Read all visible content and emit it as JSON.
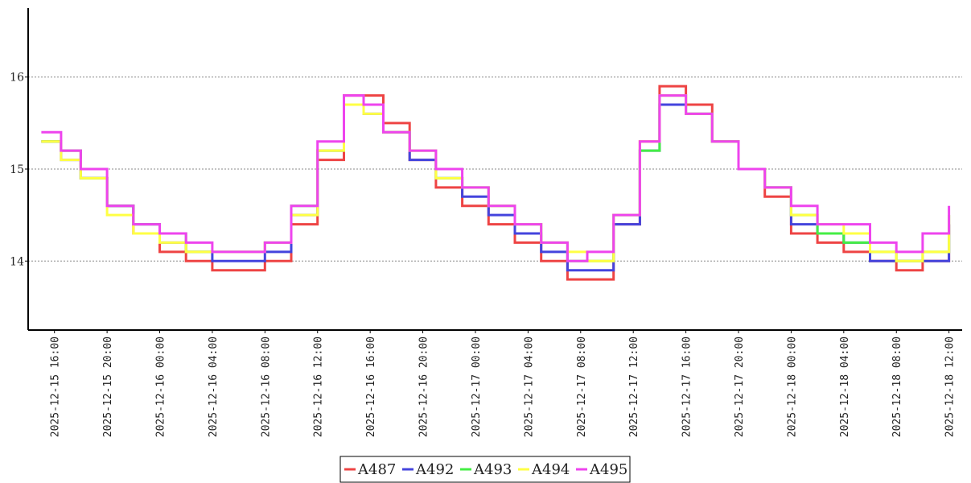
{
  "chart_data": {
    "type": "line",
    "step": true,
    "title": "",
    "xlabel": "",
    "ylabel": "",
    "ylim": [
      13.25,
      16.75
    ],
    "yticks": [
      14,
      15,
      16
    ],
    "xrange": [
      "2025-12-15 14:00",
      "2025-12-18 13:00"
    ],
    "xticks": [
      "2025-12-15 16:00",
      "2025-12-15 20:00",
      "2025-12-16 00:00",
      "2025-12-16 04:00",
      "2025-12-16 08:00",
      "2025-12-16 12:00",
      "2025-12-16 16:00",
      "2025-12-16 20:00",
      "2025-12-17 00:00",
      "2025-12-17 04:00",
      "2025-12-17 08:00",
      "2025-12-17 12:00",
      "2025-12-17 16:00",
      "2025-12-17 20:00",
      "2025-12-18 00:00",
      "2025-12-18 04:00",
      "2025-12-18 08:00",
      "2025-12-18 12:00"
    ],
    "grid": "horizontal-dotted",
    "legend": "bottom",
    "series": [
      {
        "name": "A487",
        "color": "#ee4444",
        "x": [
          "2025-12-15 15:00",
          "2025-12-15 16:30",
          "2025-12-15 18:00",
          "2025-12-15 20:00",
          "2025-12-15 22:00",
          "2025-12-16 00:00",
          "2025-12-16 02:00",
          "2025-12-16 04:00",
          "2025-12-16 06:00",
          "2025-12-16 08:00",
          "2025-12-16 10:00",
          "2025-12-16 12:00",
          "2025-12-16 14:00",
          "2025-12-16 15:30",
          "2025-12-16 17:00",
          "2025-12-16 19:00",
          "2025-12-16 21:00",
          "2025-12-16 23:00",
          "2025-12-17 01:00",
          "2025-12-17 03:00",
          "2025-12-17 05:00",
          "2025-12-17 07:00",
          "2025-12-17 08:30",
          "2025-12-17 10:30",
          "2025-12-17 12:30",
          "2025-12-17 14:00",
          "2025-12-17 16:00",
          "2025-12-17 18:00",
          "2025-12-17 20:00",
          "2025-12-17 22:00",
          "2025-12-18 00:00",
          "2025-12-18 02:00",
          "2025-12-18 04:00",
          "2025-12-18 06:00",
          "2025-12-18 08:00",
          "2025-12-18 10:00",
          "2025-12-18 12:00"
        ],
        "y": [
          15.3,
          15.2,
          14.9,
          14.6,
          14.3,
          14.1,
          14.0,
          13.9,
          13.9,
          14.0,
          14.4,
          15.1,
          15.8,
          15.8,
          15.5,
          15.1,
          14.8,
          14.6,
          14.4,
          14.2,
          14.0,
          13.8,
          13.8,
          14.4,
          15.3,
          15.9,
          15.7,
          15.3,
          15.0,
          14.7,
          14.3,
          14.2,
          14.1,
          14.0,
          13.9,
          14.0,
          14.4
        ]
      },
      {
        "name": "A492",
        "color": "#4444dd",
        "x": [
          "2025-12-15 15:00",
          "2025-12-15 16:30",
          "2025-12-15 18:00",
          "2025-12-15 20:00",
          "2025-12-15 22:00",
          "2025-12-16 00:00",
          "2025-12-16 02:00",
          "2025-12-16 04:00",
          "2025-12-16 06:00",
          "2025-12-16 08:00",
          "2025-12-16 10:00",
          "2025-12-16 12:00",
          "2025-12-16 14:00",
          "2025-12-16 15:30",
          "2025-12-16 17:00",
          "2025-12-16 19:00",
          "2025-12-16 21:00",
          "2025-12-16 23:00",
          "2025-12-17 01:00",
          "2025-12-17 03:00",
          "2025-12-17 05:00",
          "2025-12-17 07:00",
          "2025-12-17 08:30",
          "2025-12-17 10:30",
          "2025-12-17 12:30",
          "2025-12-17 14:00",
          "2025-12-17 16:00",
          "2025-12-17 18:00",
          "2025-12-17 20:00",
          "2025-12-17 22:00",
          "2025-12-18 00:00",
          "2025-12-18 02:00",
          "2025-12-18 04:00",
          "2025-12-18 06:00",
          "2025-12-18 08:00",
          "2025-12-18 10:00",
          "2025-12-18 12:00"
        ],
        "y": [
          15.3,
          15.1,
          14.9,
          14.6,
          14.4,
          14.2,
          14.1,
          14.0,
          14.0,
          14.1,
          14.5,
          15.2,
          15.7,
          15.6,
          15.4,
          15.1,
          14.9,
          14.7,
          14.5,
          14.3,
          14.1,
          13.9,
          13.9,
          14.4,
          15.2,
          15.7,
          15.6,
          15.3,
          15.0,
          14.8,
          14.4,
          14.3,
          14.2,
          14.0,
          14.0,
          14.0,
          14.4
        ]
      },
      {
        "name": "A493",
        "color": "#44ee44",
        "x": [
          "2025-12-15 15:00",
          "2025-12-15 16:30",
          "2025-12-15 18:00",
          "2025-12-15 20:00",
          "2025-12-15 22:00",
          "2025-12-16 00:00",
          "2025-12-16 02:00",
          "2025-12-16 04:00",
          "2025-12-16 06:00",
          "2025-12-16 08:00",
          "2025-12-16 10:00",
          "2025-12-16 12:00",
          "2025-12-16 14:00",
          "2025-12-16 15:30",
          "2025-12-16 17:00",
          "2025-12-16 19:00",
          "2025-12-16 21:00",
          "2025-12-16 23:00",
          "2025-12-17 01:00",
          "2025-12-17 03:00",
          "2025-12-17 05:00",
          "2025-12-17 07:00",
          "2025-12-17 08:30",
          "2025-12-17 10:30",
          "2025-12-17 12:30",
          "2025-12-17 14:00",
          "2025-12-17 16:00",
          "2025-12-17 18:00",
          "2025-12-17 20:00",
          "2025-12-17 22:00",
          "2025-12-18 00:00",
          "2025-12-18 02:00",
          "2025-12-18 04:00",
          "2025-12-18 06:00",
          "2025-12-18 08:00",
          "2025-12-18 10:00",
          "2025-12-18 12:00"
        ],
        "y": [
          15.3,
          15.2,
          14.9,
          14.6,
          14.4,
          14.3,
          14.1,
          14.1,
          14.1,
          14.2,
          14.6,
          15.2,
          15.7,
          15.7,
          15.4,
          15.2,
          14.9,
          14.8,
          14.6,
          14.4,
          14.2,
          14.0,
          14.0,
          14.5,
          15.2,
          15.8,
          15.6,
          15.3,
          15.0,
          14.8,
          14.5,
          14.3,
          14.2,
          14.1,
          14.0,
          14.1,
          14.5
        ]
      },
      {
        "name": "A494",
        "color": "#ffff44",
        "x": [
          "2025-12-15 15:00",
          "2025-12-15 16:30",
          "2025-12-15 18:00",
          "2025-12-15 20:00",
          "2025-12-15 22:00",
          "2025-12-16 00:00",
          "2025-12-16 02:00",
          "2025-12-16 04:00",
          "2025-12-16 06:00",
          "2025-12-16 08:00",
          "2025-12-16 10:00",
          "2025-12-16 12:00",
          "2025-12-16 14:00",
          "2025-12-16 15:30",
          "2025-12-16 17:00",
          "2025-12-16 19:00",
          "2025-12-16 21:00",
          "2025-12-16 23:00",
          "2025-12-17 01:00",
          "2025-12-17 03:00",
          "2025-12-17 05:00",
          "2025-12-17 07:00",
          "2025-12-17 08:30",
          "2025-12-17 10:30",
          "2025-12-17 12:30",
          "2025-12-17 14:00",
          "2025-12-17 16:00",
          "2025-12-17 18:00",
          "2025-12-17 20:00",
          "2025-12-17 22:00",
          "2025-12-18 00:00",
          "2025-12-18 02:00",
          "2025-12-18 04:00",
          "2025-12-18 06:00",
          "2025-12-18 08:00",
          "2025-12-18 10:00",
          "2025-12-18 12:00"
        ],
        "y": [
          15.3,
          15.1,
          14.9,
          14.5,
          14.3,
          14.2,
          14.1,
          14.1,
          14.1,
          14.2,
          14.5,
          15.2,
          15.7,
          15.6,
          15.4,
          15.2,
          14.9,
          14.8,
          14.6,
          14.4,
          14.2,
          14.1,
          14.0,
          14.5,
          15.3,
          15.8,
          15.6,
          15.3,
          15.0,
          14.8,
          14.5,
          14.4,
          14.3,
          14.1,
          14.0,
          14.1,
          14.5
        ]
      },
      {
        "name": "A495",
        "color": "#ee44ee",
        "x": [
          "2025-12-15 15:00",
          "2025-12-15 16:30",
          "2025-12-15 18:00",
          "2025-12-15 20:00",
          "2025-12-15 22:00",
          "2025-12-16 00:00",
          "2025-12-16 02:00",
          "2025-12-16 04:00",
          "2025-12-16 06:00",
          "2025-12-16 08:00",
          "2025-12-16 10:00",
          "2025-12-16 12:00",
          "2025-12-16 14:00",
          "2025-12-16 15:30",
          "2025-12-16 17:00",
          "2025-12-16 19:00",
          "2025-12-16 21:00",
          "2025-12-16 23:00",
          "2025-12-17 01:00",
          "2025-12-17 03:00",
          "2025-12-17 05:00",
          "2025-12-17 07:00",
          "2025-12-17 08:30",
          "2025-12-17 10:30",
          "2025-12-17 12:30",
          "2025-12-17 14:00",
          "2025-12-17 16:00",
          "2025-12-17 18:00",
          "2025-12-17 20:00",
          "2025-12-17 22:00",
          "2025-12-18 00:00",
          "2025-12-18 02:00",
          "2025-12-18 04:00",
          "2025-12-18 06:00",
          "2025-12-18 08:00",
          "2025-12-18 10:00",
          "2025-12-18 12:00"
        ],
        "y": [
          15.4,
          15.2,
          15.0,
          14.6,
          14.4,
          14.3,
          14.2,
          14.1,
          14.1,
          14.2,
          14.6,
          15.3,
          15.8,
          15.7,
          15.4,
          15.2,
          15.0,
          14.8,
          14.6,
          14.4,
          14.2,
          14.0,
          14.1,
          14.5,
          15.3,
          15.8,
          15.6,
          15.3,
          15.0,
          14.8,
          14.6,
          14.4,
          14.4,
          14.2,
          14.1,
          14.3,
          14.6
        ]
      }
    ]
  }
}
